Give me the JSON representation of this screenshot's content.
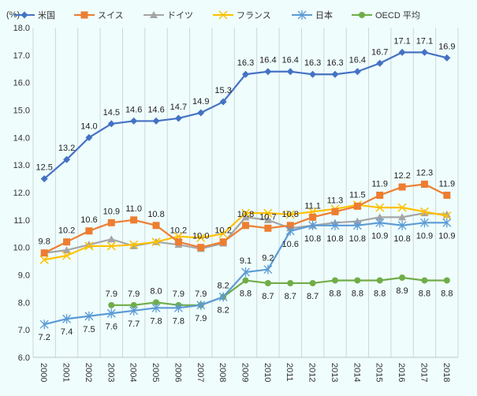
{
  "chart_data": {
    "type": "line",
    "ylabel": "(%)",
    "ylim": [
      6.0,
      18.0
    ],
    "yticks": [
      "6.0",
      "7.0",
      "8.0",
      "9.0",
      "10.0",
      "11.0",
      "12.0",
      "13.0",
      "14.0",
      "15.0",
      "16.0",
      "17.0",
      "18.0"
    ],
    "grid": "vertical",
    "legend": "top",
    "categories": [
      "2000",
      "2001",
      "2002",
      "2003",
      "2004",
      "2005",
      "2006",
      "2007",
      "2008",
      "2009",
      "2010",
      "2011",
      "2012",
      "2013",
      "2014",
      "2015",
      "2016",
      "2017",
      "2018"
    ],
    "series": [
      {
        "name": "米国",
        "color": "#4472C4",
        "marker": "diamond",
        "labeled": true,
        "values": [
          12.5,
          13.2,
          14.0,
          14.5,
          14.6,
          14.6,
          14.7,
          14.9,
          15.3,
          16.3,
          16.4,
          16.4,
          16.3,
          16.3,
          16.4,
          16.7,
          17.1,
          17.1,
          16.9
        ]
      },
      {
        "name": "スイス",
        "color": "#ED7D31",
        "marker": "square",
        "labeled": true,
        "values": [
          9.8,
          10.2,
          10.6,
          10.9,
          11.0,
          10.8,
          10.2,
          10.0,
          10.2,
          10.8,
          10.7,
          10.8,
          11.1,
          11.3,
          11.5,
          11.9,
          12.2,
          12.3,
          11.9
        ]
      },
      {
        "name": "ドイツ",
        "color": "#A5A5A5",
        "marker": "triangle",
        "labeled": false,
        "values": [
          9.8,
          9.9,
          10.1,
          10.3,
          10.05,
          10.2,
          10.1,
          9.95,
          10.15,
          11.1,
          11.0,
          10.7,
          10.8,
          10.9,
          10.95,
          11.1,
          11.1,
          11.25,
          11.2
        ]
      },
      {
        "name": "フランス",
        "color": "#FFC000",
        "marker": "x",
        "labeled": false,
        "values": [
          9.55,
          9.7,
          10.05,
          10.05,
          10.1,
          10.2,
          10.4,
          10.35,
          10.5,
          11.25,
          11.25,
          11.2,
          11.3,
          11.4,
          11.55,
          11.45,
          11.45,
          11.3,
          11.15
        ]
      },
      {
        "name": "日本",
        "color": "#5B9BD5",
        "marker": "asterisk",
        "labeled": true,
        "values": [
          7.2,
          7.4,
          7.5,
          7.6,
          7.7,
          7.8,
          7.8,
          7.9,
          8.2,
          9.1,
          9.2,
          10.6,
          10.8,
          10.8,
          10.8,
          10.9,
          10.8,
          10.9,
          10.9
        ]
      },
      {
        "name": "OECD 平均",
        "color": "#70AD47",
        "marker": "circle",
        "labeled": true,
        "values": [
          null,
          null,
          null,
          7.9,
          7.9,
          8.0,
          7.9,
          7.9,
          8.2,
          8.8,
          8.7,
          8.7,
          8.7,
          8.8,
          8.8,
          8.8,
          8.9,
          8.8,
          8.8
        ]
      }
    ]
  }
}
